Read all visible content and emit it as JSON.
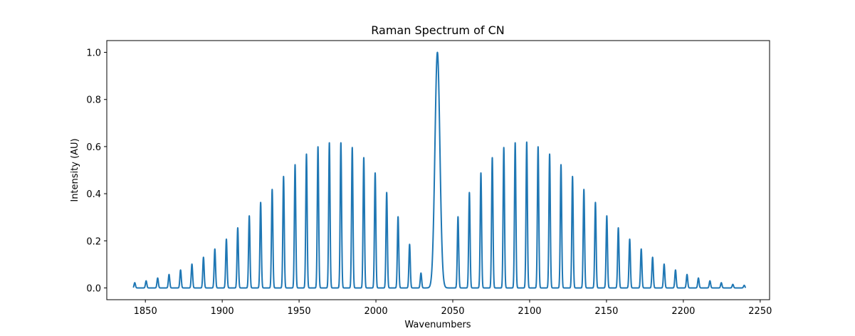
{
  "chart_data": {
    "type": "line",
    "title": "Raman Spectrum of CN",
    "xlabel": "Wavenumbers",
    "ylabel": "Intensity (AU)",
    "xlim": [
      1824.9,
      2256.1
    ],
    "ylim": [
      -0.05,
      1.05
    ],
    "xticks": [
      1850,
      1900,
      1950,
      2000,
      2050,
      2100,
      2150,
      2200,
      2250
    ],
    "yticks": [
      0.0,
      0.2,
      0.4,
      0.6,
      0.8,
      1.0
    ],
    "grid": false,
    "line_color": "#1f77b4",
    "central_peak": {
      "x": 2040,
      "height": 1.0,
      "width": 1.6
    },
    "rotational_peak_width": 0.45,
    "series": [
      {
        "x": [
          1843.1,
          1850.5,
          1858.0,
          1865.4,
          1872.9,
          1880.3,
          1887.8,
          1895.2,
          1902.7,
          1910.1,
          1917.6,
          1925.0,
          1932.5,
          1939.9,
          1947.4,
          1954.8,
          1962.3,
          1969.7,
          1977.2,
          1984.6,
          1992.1,
          1999.5,
          2007.0,
          2014.4,
          2021.9,
          2029.3,
          2053.4,
          2060.8,
          2068.3,
          2075.7,
          2083.2,
          2090.6,
          2098.1,
          2105.5,
          2113.0,
          2120.4,
          2127.9,
          2135.3,
          2142.8,
          2150.2,
          2157.7,
          2165.1,
          2172.6,
          2180.0,
          2187.5,
          2194.9,
          2202.4,
          2209.8,
          2217.3,
          2224.7,
          2232.2,
          2239.6
        ],
        "y": [
          0.022,
          0.03,
          0.042,
          0.057,
          0.076,
          0.101,
          0.13,
          0.165,
          0.207,
          0.255,
          0.306,
          0.363,
          0.418,
          0.473,
          0.523,
          0.568,
          0.599,
          0.616,
          0.616,
          0.596,
          0.553,
          0.488,
          0.405,
          0.302,
          0.185,
          0.063,
          0.302,
          0.405,
          0.488,
          0.553,
          0.596,
          0.616,
          0.619,
          0.599,
          0.568,
          0.523,
          0.473,
          0.418,
          0.363,
          0.306,
          0.255,
          0.207,
          0.165,
          0.13,
          0.101,
          0.076,
          0.057,
          0.042,
          0.03,
          0.022,
          0.015,
          0.011
        ]
      }
    ]
  }
}
